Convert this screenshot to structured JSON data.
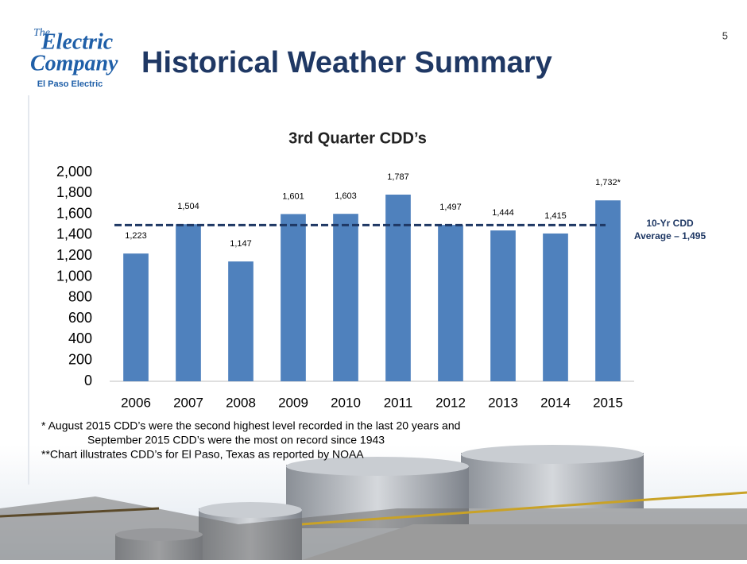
{
  "slide": {
    "page_number": "5",
    "title": "Historical Weather Summary",
    "logo": {
      "the": "The",
      "line1": "Electric",
      "line2": "Company",
      "company": "El Paso Electric"
    }
  },
  "chart_data": {
    "type": "bar",
    "title": "3rd Quarter CDD’s",
    "categories": [
      "2006",
      "2007",
      "2008",
      "2009",
      "2010",
      "2011",
      "2012",
      "2013",
      "2014",
      "2015"
    ],
    "values": [
      1223,
      1504,
      1147,
      1601,
      1603,
      1787,
      1497,
      1444,
      1415,
      1732
    ],
    "value_labels": [
      "1,223",
      "1,504",
      "1,147",
      "1,601",
      "1,603",
      "1,787",
      "1,497",
      "1,444",
      "1,415",
      "1,732*"
    ],
    "color": "#4f81bd",
    "ylim": [
      0,
      2000
    ],
    "yticks": [
      0,
      200,
      400,
      600,
      800,
      {
        "value": 1000,
        "label": "1,000"
      },
      {
        "value": 1200,
        "label": "1,200"
      },
      {
        "value": 1400,
        "label": "1,400"
      },
      {
        "value": 1600,
        "label": "1,600"
      },
      {
        "value": 1800,
        "label": "1,800"
      },
      {
        "value": 2000,
        "label": "2,000"
      }
    ],
    "grid": false,
    "average": {
      "value": 1495,
      "color": "#1f3864",
      "label": [
        "10-Yr CDD",
        "Average – 1,495"
      ]
    }
  },
  "footnotes": [
    "*  August 2015 CDD’s  were the second highest level recorded in the last 20 years and",
    "September 2015 CDD’s were the most on record since 1943",
    "**Chart illustrates CDD’s for El Paso, Texas as reported by NOAA"
  ]
}
